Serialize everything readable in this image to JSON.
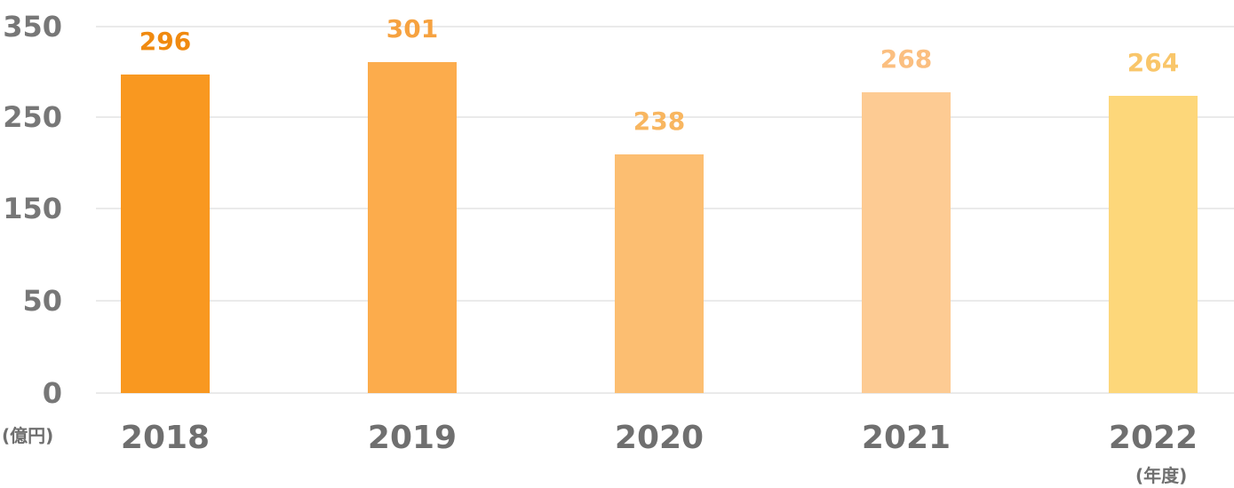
{
  "chart_data": {
    "type": "bar",
    "categories": [
      "2018",
      "2019",
      "2020",
      "2021",
      "2022"
    ],
    "values": [
      296,
      301,
      238,
      268,
      264
    ],
    "colors": [
      "#f99820",
      "#fcac4c",
      "#fcbe71",
      "#fdcb93",
      "#fdd77a"
    ],
    "label_colors": [
      "#f08a10",
      "#f6a240",
      "#f8b660",
      "#fbbf80",
      "#f9c66a"
    ],
    "y_ticks": [
      "350",
      "250",
      "150",
      "50",
      "0"
    ],
    "y_unit": "(億円)",
    "x_unit": "(年度)",
    "ylim": [
      0,
      350
    ],
    "grid": true
  }
}
